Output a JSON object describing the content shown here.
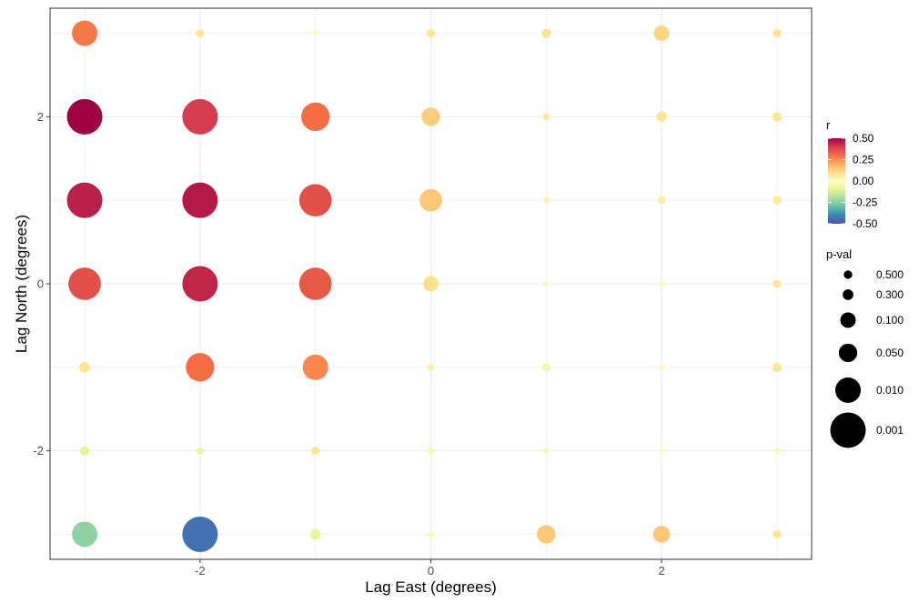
{
  "chart_data": {
    "type": "scatter",
    "subtype": "bubble",
    "xlabel": "Lag East (degrees)",
    "ylabel": "Lag North (degrees)",
    "xlim": [
      -3.3,
      3.3
    ],
    "ylim": [
      -3.3,
      3.3
    ],
    "x_ticks": [
      -2,
      0,
      2
    ],
    "y_ticks": [
      -2,
      0,
      2
    ],
    "x_tick_labels": [
      "-2",
      "0",
      "2"
    ],
    "y_tick_labels": [
      "-2",
      "0",
      "2"
    ],
    "grid": true,
    "color_legend": {
      "title": "r",
      "min": -0.5,
      "max": 0.5,
      "labels": [
        "0.50",
        "0.25",
        "0.00",
        "-0.25",
        "-0.50"
      ],
      "values": [
        0.5,
        0.25,
        0.0,
        -0.25,
        -0.5
      ],
      "stops": [
        "#5e4fa2",
        "#3288bd",
        "#66c2a5",
        "#abdda4",
        "#e6f598",
        "#ffffbf",
        "#fee08b",
        "#fdae61",
        "#f46d43",
        "#d53e4f",
        "#9e0142"
      ]
    },
    "size_legend": {
      "title": "p-val",
      "labels": [
        "0.500",
        "0.300",
        "0.100",
        "0.050",
        "0.010",
        "0.001"
      ],
      "values": [
        0.5,
        0.3,
        0.1,
        0.05,
        0.01,
        0.001
      ]
    },
    "points": [
      {
        "x": -3,
        "y": 3,
        "r": 0.28,
        "p": 0.01
      },
      {
        "x": -2,
        "y": 3,
        "r": 0.08,
        "p": 0.5
      },
      {
        "x": -1,
        "y": 3,
        "r": 0.02,
        "p": 0.99
      },
      {
        "x": 0,
        "y": 3,
        "r": 0.08,
        "p": 0.5
      },
      {
        "x": 1,
        "y": 3,
        "r": 0.09,
        "p": 0.4
      },
      {
        "x": 2,
        "y": 3,
        "r": 0.12,
        "p": 0.1
      },
      {
        "x": 3,
        "y": 3,
        "r": 0.08,
        "p": 0.5
      },
      {
        "x": -3,
        "y": 2,
        "r": 0.5,
        "p": 0.001
      },
      {
        "x": -2,
        "y": 2,
        "r": 0.4,
        "p": 0.001
      },
      {
        "x": -1,
        "y": 2,
        "r": 0.3,
        "p": 0.005
      },
      {
        "x": 0,
        "y": 2,
        "r": 0.14,
        "p": 0.05
      },
      {
        "x": 1,
        "y": 2,
        "r": 0.06,
        "p": 0.7
      },
      {
        "x": 2,
        "y": 2,
        "r": 0.08,
        "p": 0.3
      },
      {
        "x": 3,
        "y": 2,
        "r": 0.08,
        "p": 0.4
      },
      {
        "x": -3,
        "y": 1,
        "r": 0.45,
        "p": 0.001
      },
      {
        "x": -2,
        "y": 1,
        "r": 0.46,
        "p": 0.001
      },
      {
        "x": -1,
        "y": 1,
        "r": 0.36,
        "p": 0.002
      },
      {
        "x": 0,
        "y": 1,
        "r": 0.15,
        "p": 0.02
      },
      {
        "x": 1,
        "y": 1,
        "r": 0.04,
        "p": 0.85
      },
      {
        "x": 2,
        "y": 1,
        "r": 0.06,
        "p": 0.6
      },
      {
        "x": 3,
        "y": 1,
        "r": 0.07,
        "p": 0.5
      },
      {
        "x": -3,
        "y": 0,
        "r": 0.36,
        "p": 0.002
      },
      {
        "x": -2,
        "y": 0,
        "r": 0.44,
        "p": 0.001
      },
      {
        "x": -1,
        "y": 0,
        "r": 0.34,
        "p": 0.002
      },
      {
        "x": 0,
        "y": 0,
        "r": 0.1,
        "p": 0.1
      },
      {
        "x": 1,
        "y": 0,
        "r": 0.02,
        "p": 0.99
      },
      {
        "x": 2,
        "y": 0,
        "r": 0.02,
        "p": 0.95
      },
      {
        "x": 3,
        "y": 0,
        "r": 0.07,
        "p": 0.5
      },
      {
        "x": -3,
        "y": -1,
        "r": 0.08,
        "p": 0.3
      },
      {
        "x": -2,
        "y": -1,
        "r": 0.3,
        "p": 0.005
      },
      {
        "x": -1,
        "y": -1,
        "r": 0.26,
        "p": 0.01
      },
      {
        "x": 0,
        "y": -1,
        "r": 0.05,
        "p": 0.7
      },
      {
        "x": 1,
        "y": -1,
        "r": -0.06,
        "p": 0.5
      },
      {
        "x": 2,
        "y": -1,
        "r": 0.02,
        "p": 0.99
      },
      {
        "x": 3,
        "y": -1,
        "r": 0.08,
        "p": 0.4
      },
      {
        "x": -3,
        "y": -2,
        "r": -0.1,
        "p": 0.4
      },
      {
        "x": -2,
        "y": -2,
        "r": -0.08,
        "p": 0.7
      },
      {
        "x": -1,
        "y": -2,
        "r": 0.08,
        "p": 0.5
      },
      {
        "x": 0,
        "y": -2,
        "r": 0.04,
        "p": 0.85
      },
      {
        "x": 1,
        "y": -2,
        "r": 0.03,
        "p": 0.95
      },
      {
        "x": 2,
        "y": -2,
        "r": 0.01,
        "p": 0.99
      },
      {
        "x": 3,
        "y": -2,
        "r": 0.03,
        "p": 0.95
      },
      {
        "x": -3,
        "y": -3,
        "r": -0.24,
        "p": 0.01
      },
      {
        "x": -2,
        "y": -3,
        "r": -0.44,
        "p": 0.001
      },
      {
        "x": -1,
        "y": -3,
        "r": -0.1,
        "p": 0.3
      },
      {
        "x": 0,
        "y": -3,
        "r": 0.03,
        "p": 0.99
      },
      {
        "x": 1,
        "y": -3,
        "r": 0.15,
        "p": 0.05
      },
      {
        "x": 2,
        "y": -3,
        "r": 0.15,
        "p": 0.07
      },
      {
        "x": 3,
        "y": -3,
        "r": 0.08,
        "p": 0.5
      }
    ]
  }
}
